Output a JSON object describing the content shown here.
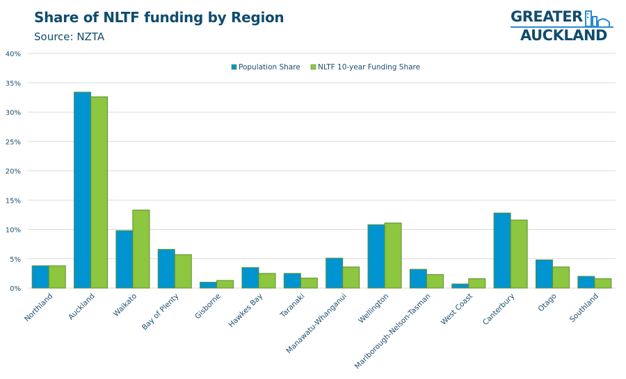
{
  "header": {
    "title": "Share of NLTF funding by Region",
    "subtitle": "Source: NZTA"
  },
  "logo": {
    "line1": "GREATER",
    "line2": "AUCKLAND",
    "icon": "city-skyline-icon"
  },
  "colors": {
    "population": "#0094d0",
    "funding": "#8dc63f",
    "bar_border": "#5a8f2e",
    "grid": "#d9d9d9",
    "text": "#1a4d6e"
  },
  "chart_data": {
    "type": "bar",
    "title": "Share of NLTF funding by Region",
    "subtitle": "Source: NZTA",
    "xlabel": "",
    "ylabel": "",
    "ylim": [
      0,
      40
    ],
    "yticks": [
      0,
      5,
      10,
      15,
      20,
      25,
      30,
      35,
      40
    ],
    "ytick_labels": [
      "0%",
      "5%",
      "10%",
      "15%",
      "20%",
      "25%",
      "30%",
      "35%",
      "40%"
    ],
    "grid": true,
    "legend_position": "top-center",
    "categories": [
      "Northland",
      "Auckland",
      "Waikato",
      "Bay of Plenty",
      "Gisborne",
      "Hawkes Bay",
      "Taranaki",
      "Manawatu-Whanganui",
      "Wellington",
      "Marlborough-Nelson-Tasman",
      "West Coast",
      "Canterbury",
      "Otago",
      "Southland"
    ],
    "series": [
      {
        "name": "Population Share",
        "values": [
          3.8,
          33.4,
          9.8,
          6.6,
          1.0,
          3.5,
          2.5,
          5.1,
          10.8,
          3.2,
          0.7,
          12.8,
          4.8,
          2.0
        ]
      },
      {
        "name": "NLTF 10-year Funding Share",
        "values": [
          3.8,
          32.6,
          13.3,
          5.7,
          1.3,
          2.5,
          1.7,
          3.6,
          11.1,
          2.3,
          1.6,
          11.6,
          3.6,
          1.6
        ]
      }
    ]
  }
}
